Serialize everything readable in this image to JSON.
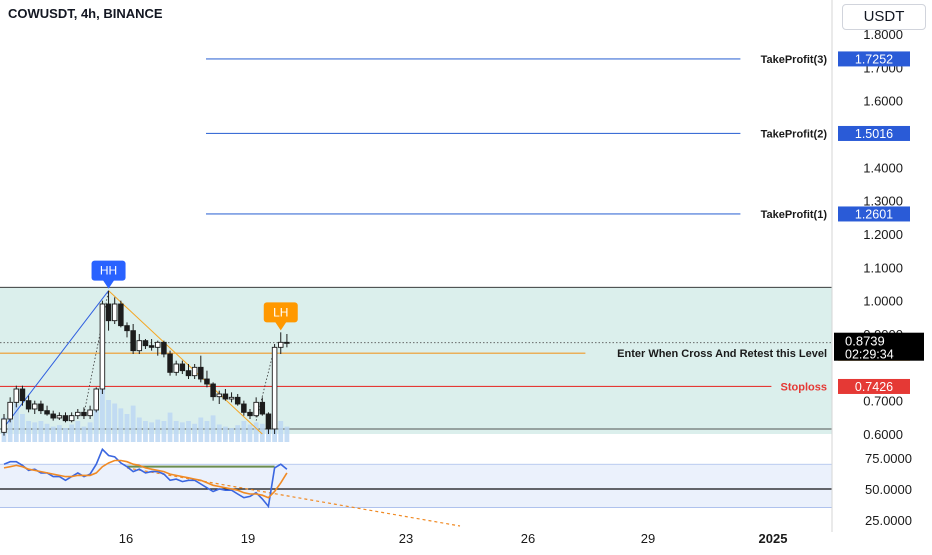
{
  "header": {
    "symbol_line": "COWUSDT, 4h, BINANCE"
  },
  "currency_button": "USDT",
  "colors": {
    "up": "#ffffff",
    "down": "#1c1c1c",
    "wick": "#1c1c1c",
    "take_profit": "#3d6fd6",
    "tp_badge": "#2a5bd7",
    "entry": "#f09a2a",
    "stoploss": "#e53935",
    "zone": "#cfe9e6",
    "trend_up": "#2f5fe0",
    "trend_down": "#f5a623",
    "volume": "#bcd7f3",
    "rsi_blue": "#3a66e0",
    "rsi_orange": "#f08a24",
    "rsi_band": "#e6eefb",
    "flat_line": "#6c8e4e",
    "axis_text": "#1a1a1a",
    "hh_badge": "#2962ff",
    "lh_badge": "#ff9800",
    "last_price_bg": "#000000"
  },
  "chart_data": {
    "type": "candlestick",
    "price_axis_ticks": [
      "1.8000",
      "1.7000",
      "1.6000",
      "1.5000",
      "1.4000",
      "1.3000",
      "1.2000",
      "1.1000",
      "1.0000",
      "0.9000",
      "0.7000",
      "0.6000"
    ],
    "oscillator_axis_ticks": [
      "75.0000",
      "50.0000",
      "25.0000"
    ],
    "time_axis_ticks": [
      "16",
      "19",
      "23",
      "26",
      "29",
      "2025"
    ],
    "ylim": [
      0.55,
      1.85
    ],
    "osc_ylim": [
      22,
      82
    ],
    "candles": [
      {
        "o": 0.605,
        "h": 0.66,
        "l": 0.595,
        "c": 0.645
      },
      {
        "o": 0.645,
        "h": 0.71,
        "l": 0.635,
        "c": 0.695
      },
      {
        "o": 0.695,
        "h": 0.745,
        "l": 0.68,
        "c": 0.735
      },
      {
        "o": 0.735,
        "h": 0.745,
        "l": 0.685,
        "c": 0.7
      },
      {
        "o": 0.7,
        "h": 0.715,
        "l": 0.665,
        "c": 0.675
      },
      {
        "o": 0.675,
        "h": 0.7,
        "l": 0.66,
        "c": 0.69
      },
      {
        "o": 0.69,
        "h": 0.7,
        "l": 0.66,
        "c": 0.67
      },
      {
        "o": 0.67,
        "h": 0.685,
        "l": 0.655,
        "c": 0.66
      },
      {
        "o": 0.66,
        "h": 0.67,
        "l": 0.64,
        "c": 0.648
      },
      {
        "o": 0.648,
        "h": 0.665,
        "l": 0.642,
        "c": 0.655
      },
      {
        "o": 0.655,
        "h": 0.665,
        "l": 0.635,
        "c": 0.64
      },
      {
        "o": 0.64,
        "h": 0.665,
        "l": 0.635,
        "c": 0.655
      },
      {
        "o": 0.655,
        "h": 0.675,
        "l": 0.645,
        "c": 0.665
      },
      {
        "o": 0.665,
        "h": 0.68,
        "l": 0.645,
        "c": 0.655
      },
      {
        "o": 0.655,
        "h": 0.685,
        "l": 0.645,
        "c": 0.672
      },
      {
        "o": 0.672,
        "h": 0.74,
        "l": 0.665,
        "c": 0.735
      },
      {
        "o": 0.735,
        "h": 1.0,
        "l": 0.72,
        "c": 0.99
      },
      {
        "o": 0.99,
        "h": 1.03,
        "l": 0.91,
        "c": 0.94
      },
      {
        "o": 0.94,
        "h": 1.01,
        "l": 0.93,
        "c": 0.99
      },
      {
        "o": 0.99,
        "h": 1.0,
        "l": 0.92,
        "c": 0.925
      },
      {
        "o": 0.925,
        "h": 0.935,
        "l": 0.89,
        "c": 0.91
      },
      {
        "o": 0.91,
        "h": 0.93,
        "l": 0.84,
        "c": 0.85
      },
      {
        "o": 0.85,
        "h": 0.9,
        "l": 0.84,
        "c": 0.88
      },
      {
        "o": 0.88,
        "h": 0.885,
        "l": 0.855,
        "c": 0.865
      },
      {
        "o": 0.865,
        "h": 0.885,
        "l": 0.85,
        "c": 0.86
      },
      {
        "o": 0.86,
        "h": 0.88,
        "l": 0.835,
        "c": 0.875
      },
      {
        "o": 0.875,
        "h": 0.88,
        "l": 0.83,
        "c": 0.84
      },
      {
        "o": 0.84,
        "h": 0.85,
        "l": 0.775,
        "c": 0.785
      },
      {
        "o": 0.785,
        "h": 0.82,
        "l": 0.775,
        "c": 0.81
      },
      {
        "o": 0.81,
        "h": 0.82,
        "l": 0.78,
        "c": 0.79
      },
      {
        "o": 0.79,
        "h": 0.81,
        "l": 0.765,
        "c": 0.775
      },
      {
        "o": 0.775,
        "h": 0.81,
        "l": 0.765,
        "c": 0.8
      },
      {
        "o": 0.8,
        "h": 0.835,
        "l": 0.755,
        "c": 0.765
      },
      {
        "o": 0.765,
        "h": 0.79,
        "l": 0.74,
        "c": 0.75
      },
      {
        "o": 0.75,
        "h": 0.755,
        "l": 0.7,
        "c": 0.712
      },
      {
        "o": 0.712,
        "h": 0.73,
        "l": 0.69,
        "c": 0.72
      },
      {
        "o": 0.72,
        "h": 0.735,
        "l": 0.7,
        "c": 0.705
      },
      {
        "o": 0.705,
        "h": 0.725,
        "l": 0.695,
        "c": 0.71
      },
      {
        "o": 0.71,
        "h": 0.72,
        "l": 0.685,
        "c": 0.69
      },
      {
        "o": 0.69,
        "h": 0.7,
        "l": 0.655,
        "c": 0.665
      },
      {
        "o": 0.665,
        "h": 0.675,
        "l": 0.645,
        "c": 0.655
      },
      {
        "o": 0.655,
        "h": 0.71,
        "l": 0.65,
        "c": 0.695
      },
      {
        "o": 0.695,
        "h": 0.71,
        "l": 0.655,
        "c": 0.66
      },
      {
        "o": 0.66,
        "h": 0.665,
        "l": 0.6,
        "c": 0.615
      },
      {
        "o": 0.615,
        "h": 0.87,
        "l": 0.6,
        "c": 0.86
      },
      {
        "o": 0.86,
        "h": 0.905,
        "l": 0.84,
        "c": 0.875
      },
      {
        "o": 0.875,
        "h": 0.9,
        "l": 0.86,
        "c": 0.8739
      }
    ],
    "volumes": [
      0.35,
      0.45,
      0.55,
      0.4,
      0.3,
      0.28,
      0.3,
      0.26,
      0.22,
      0.24,
      0.2,
      0.25,
      0.3,
      0.22,
      0.28,
      0.45,
      1.0,
      0.6,
      0.55,
      0.48,
      0.4,
      0.52,
      0.35,
      0.3,
      0.28,
      0.32,
      0.3,
      0.42,
      0.3,
      0.28,
      0.3,
      0.26,
      0.35,
      0.3,
      0.38,
      0.25,
      0.22,
      0.2,
      0.24,
      0.3,
      0.25,
      0.28,
      0.26,
      0.3,
      0.95,
      0.3,
      0.22
    ],
    "oscillator": [
      {
        "name": "blue",
        "values": [
          70,
          72,
          72,
          69,
          65,
          66,
          63,
          63,
          60,
          60,
          57,
          60,
          63,
          60,
          62,
          70,
          82,
          77,
          76,
          71,
          68,
          64,
          66,
          63,
          64,
          64,
          62,
          57,
          58,
          56,
          57,
          57,
          54,
          51,
          48,
          50,
          49,
          49,
          46,
          43,
          44,
          47,
          42,
          36,
          67,
          70,
          66
        ]
      },
      {
        "name": "orange",
        "values": [
          67,
          68,
          69,
          68,
          66,
          65,
          64,
          63,
          62,
          61,
          60,
          60,
          61,
          61,
          61,
          63,
          68,
          71,
          73,
          73,
          72,
          70,
          69,
          67,
          66,
          65,
          64,
          62,
          61,
          60,
          59,
          58,
          57,
          55,
          53,
          52,
          51,
          50,
          49,
          47,
          46,
          46,
          45,
          43,
          48,
          55,
          63
        ]
      }
    ],
    "levels": [
      {
        "label": "TakeProfit(3)",
        "value": 1.7252,
        "badge": "1.7252",
        "kind": "take_profit"
      },
      {
        "label": "TakeProfit(2)",
        "value": 1.5016,
        "badge": "1.5016",
        "kind": "take_profit"
      },
      {
        "label": "TakeProfit(1)",
        "value": 1.2601,
        "badge": "1.2601",
        "kind": "take_profit"
      },
      {
        "label": "Enter When Cross And Retest this Level",
        "value": 0.8424,
        "badge": "0.8424",
        "kind": "entry"
      },
      {
        "label": "Stoploss",
        "value": 0.7426,
        "badge": "0.7426",
        "kind": "stoploss"
      }
    ],
    "zone": {
      "top": 1.04,
      "bottom": 0.6
    },
    "last_price": {
      "value": 0.8739,
      "badge": "0.8739",
      "countdown": "02:29:34"
    },
    "annotations": [
      {
        "text": "HH",
        "candle": 17,
        "price": 1.03
      },
      {
        "text": "LH",
        "candle": 45,
        "price": 0.905
      }
    ],
    "trendlines": [
      {
        "kind": "up",
        "from": {
          "candle": 0,
          "price": 0.62
        },
        "to": {
          "candle": 17,
          "price": 1.03
        }
      },
      {
        "kind": "down",
        "from": {
          "candle": 17,
          "price": 1.03
        },
        "to": {
          "candle": 42,
          "price": 0.6
        }
      }
    ],
    "osc_flat_line": {
      "from": 20,
      "to": 44,
      "value": 68
    },
    "osc_bands": [
      70,
      50,
      35
    ]
  }
}
